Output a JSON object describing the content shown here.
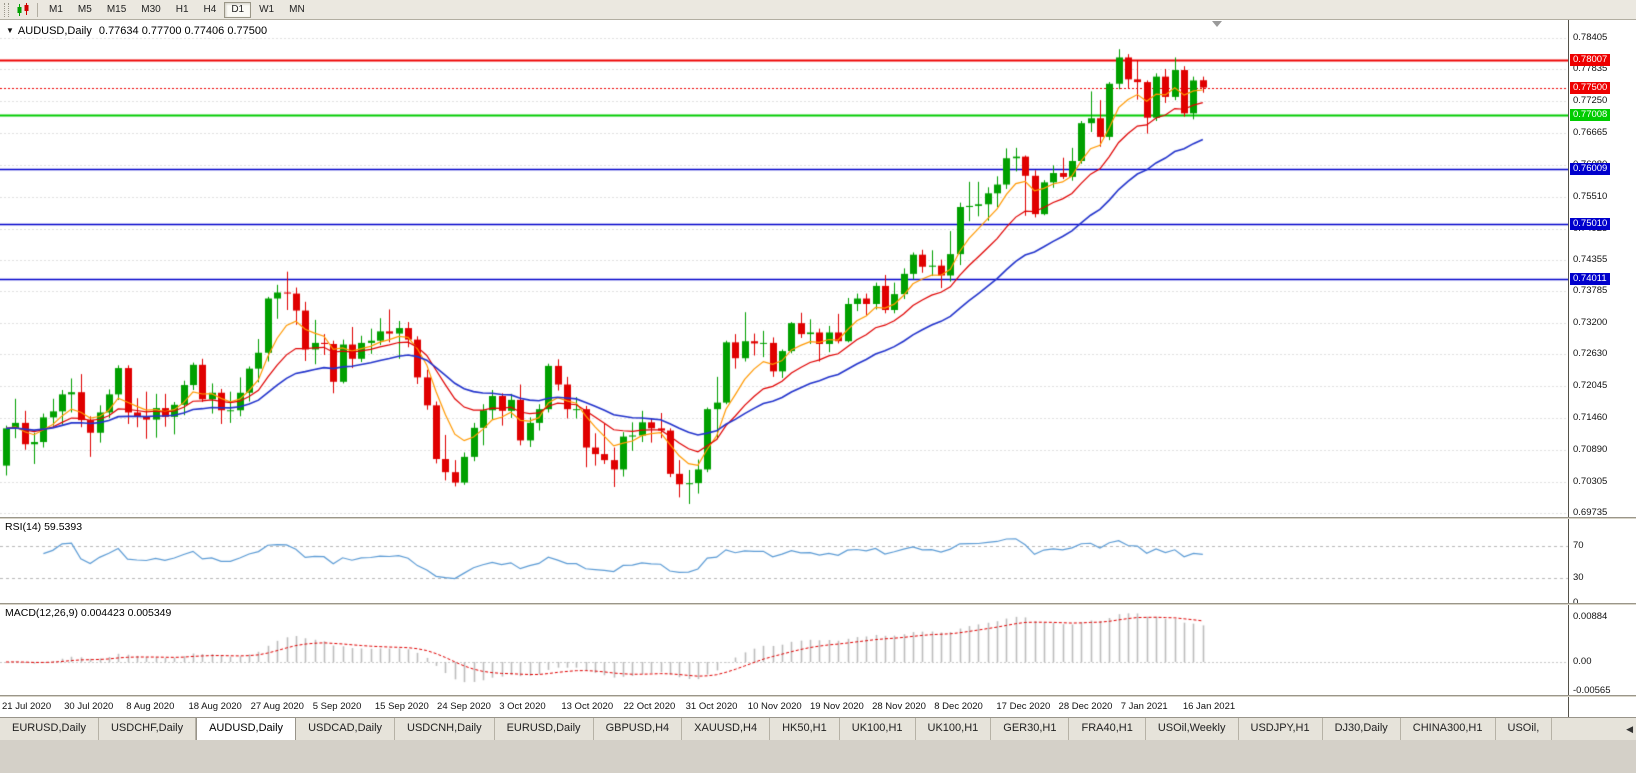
{
  "icons": {
    "title_dropdown": "▼",
    "tab_scroll_left": "◀"
  },
  "toolbar": {
    "timeframes": [
      "M1",
      "M5",
      "M15",
      "M30",
      "H1",
      "H4",
      "D1",
      "W1",
      "MN"
    ],
    "active_timeframe": "D1"
  },
  "chart": {
    "symbol_period": "AUDUSD,Daily",
    "ohlc": "0.77634 0.77700 0.77406 0.77500"
  },
  "chart_data": {
    "type": "candlestick",
    "symbol": "AUDUSD",
    "timeframe": "Daily",
    "title": "AUDUSD,Daily",
    "last_ohlc": {
      "open": 0.77634,
      "high": 0.777,
      "low": 0.77406,
      "close": 0.775
    },
    "y_axis": {
      "min": 0.69735,
      "max": 0.78405,
      "ticks": [
        "0.78405",
        "0.77835",
        "0.77250",
        "0.76665",
        "0.76080",
        "0.75510",
        "0.74925",
        "0.74355",
        "0.73785",
        "0.73200",
        "0.72630",
        "0.72045",
        "0.71460",
        "0.70890",
        "0.70305",
        "0.69735"
      ]
    },
    "x_labels": [
      "21 Jul 2020",
      "30 Jul 2020",
      "8 Aug 2020",
      "18 Aug 2020",
      "27 Aug 2020",
      "5 Sep 2020",
      "15 Sep 2020",
      "24 Sep 2020",
      "3 Oct 2020",
      "13 Oct 2020",
      "22 Oct 2020",
      "31 Oct 2020",
      "10 Nov 2020",
      "19 Nov 2020",
      "28 Nov 2020",
      "8 Dec 2020",
      "17 Dec 2020",
      "28 Dec 2020",
      "7 Jan 2021",
      "16 Jan 2021"
    ],
    "horizontal_lines": [
      {
        "id": "resistance-line",
        "price": 0.78007,
        "label": "0.78007",
        "color": "#ee0000",
        "width": 2,
        "style": "solid"
      },
      {
        "id": "bid-price-line",
        "price": 0.775,
        "label": "0.77500",
        "color": "#ee0000",
        "width": 1,
        "style": "dotted"
      },
      {
        "id": "support-line",
        "price": 0.77008,
        "label": "0.77008",
        "color": "#00cc00",
        "width": 2,
        "style": "solid"
      },
      {
        "id": "blue-level-1",
        "price": 0.76009,
        "label": "0.76009",
        "color": "#0000cc",
        "width": 1.4,
        "style": "solid"
      },
      {
        "id": "blue-level-2",
        "price": 0.7501,
        "label": "0.75010",
        "color": "#0000cc",
        "width": 1.4,
        "style": "solid"
      },
      {
        "id": "blue-level-3",
        "price": 0.74011,
        "label": "0.74011",
        "color": "#0000cc",
        "width": 1.4,
        "style": "solid"
      }
    ],
    "moving_averages": [
      {
        "period": 6,
        "type": "ema",
        "color": "#ff9900"
      },
      {
        "period": 13,
        "type": "ema",
        "color": "#e00000"
      },
      {
        "period": 26,
        "type": "ema",
        "color": "#2233cc"
      }
    ],
    "colors": {
      "bull": "#00a000",
      "bear": "#e00000",
      "grid": "#e0e0e0",
      "background": "#ffffff"
    },
    "candles": [
      [
        0.706,
        0.7133,
        0.7042,
        0.7128
      ],
      [
        0.7128,
        0.7182,
        0.711,
        0.7138
      ],
      [
        0.7138,
        0.716,
        0.7089,
        0.7099
      ],
      [
        0.7099,
        0.712,
        0.7063,
        0.7103
      ],
      [
        0.7103,
        0.7155,
        0.7093,
        0.7148
      ],
      [
        0.7148,
        0.7182,
        0.7133,
        0.7159
      ],
      [
        0.7159,
        0.7198,
        0.7135,
        0.719
      ],
      [
        0.719,
        0.7219,
        0.7157,
        0.7194
      ],
      [
        0.7194,
        0.7227,
        0.713,
        0.7143
      ],
      [
        0.7143,
        0.715,
        0.7076,
        0.712
      ],
      [
        0.712,
        0.717,
        0.7102,
        0.7157
      ],
      [
        0.7157,
        0.7199,
        0.7147,
        0.719
      ],
      [
        0.719,
        0.7243,
        0.718,
        0.7238
      ],
      [
        0.7238,
        0.7243,
        0.7136,
        0.7157
      ],
      [
        0.7157,
        0.7183,
        0.713,
        0.7149
      ],
      [
        0.7149,
        0.7195,
        0.7109,
        0.7144
      ],
      [
        0.7144,
        0.7191,
        0.7111,
        0.7165
      ],
      [
        0.7165,
        0.7191,
        0.7131,
        0.7149
      ],
      [
        0.7149,
        0.7176,
        0.7117,
        0.7171
      ],
      [
        0.7171,
        0.7215,
        0.7152,
        0.7207
      ],
      [
        0.7207,
        0.7248,
        0.7198,
        0.7244
      ],
      [
        0.7244,
        0.7255,
        0.7176,
        0.7181
      ],
      [
        0.7181,
        0.721,
        0.7155,
        0.7193
      ],
      [
        0.7193,
        0.72,
        0.7136,
        0.7161
      ],
      [
        0.7161,
        0.7195,
        0.7138,
        0.7161
      ],
      [
        0.7161,
        0.7221,
        0.715,
        0.7193
      ],
      [
        0.7193,
        0.7241,
        0.7177,
        0.7237
      ],
      [
        0.7237,
        0.7291,
        0.7212,
        0.7266
      ],
      [
        0.7266,
        0.7368,
        0.725,
        0.7365
      ],
      [
        0.7365,
        0.739,
        0.7328,
        0.7376
      ],
      [
        0.7376,
        0.7414,
        0.7344,
        0.7374
      ],
      [
        0.7374,
        0.7385,
        0.7317,
        0.7343
      ],
      [
        0.7343,
        0.7359,
        0.7251,
        0.7272
      ],
      [
        0.7272,
        0.7326,
        0.7245,
        0.7284
      ],
      [
        0.7284,
        0.73,
        0.7262,
        0.7282
      ],
      [
        0.7282,
        0.7288,
        0.7192,
        0.7213
      ],
      [
        0.7213,
        0.729,
        0.721,
        0.7281
      ],
      [
        0.7281,
        0.7313,
        0.7238,
        0.7255
      ],
      [
        0.7255,
        0.7297,
        0.7249,
        0.7284
      ],
      [
        0.7284,
        0.731,
        0.7264,
        0.7288
      ],
      [
        0.7288,
        0.7329,
        0.728,
        0.7305
      ],
      [
        0.7305,
        0.7345,
        0.7285,
        0.7301
      ],
      [
        0.7301,
        0.7324,
        0.7255,
        0.7311
      ],
      [
        0.7311,
        0.7322,
        0.7276,
        0.729
      ],
      [
        0.729,
        0.7296,
        0.7209,
        0.7221
      ],
      [
        0.7221,
        0.7235,
        0.7162,
        0.717
      ],
      [
        0.717,
        0.7177,
        0.7064,
        0.7072
      ],
      [
        0.7072,
        0.7116,
        0.7033,
        0.7048
      ],
      [
        0.7048,
        0.707,
        0.7022,
        0.7029
      ],
      [
        0.7029,
        0.7084,
        0.7025,
        0.7076
      ],
      [
        0.7076,
        0.7138,
        0.7068,
        0.7129
      ],
      [
        0.7129,
        0.7172,
        0.7097,
        0.7161
      ],
      [
        0.7161,
        0.7198,
        0.7144,
        0.7187
      ],
      [
        0.7187,
        0.7192,
        0.7133,
        0.716
      ],
      [
        0.716,
        0.7191,
        0.7147,
        0.718
      ],
      [
        0.718,
        0.7208,
        0.7097,
        0.7106
      ],
      [
        0.7106,
        0.7148,
        0.7094,
        0.7138
      ],
      [
        0.7138,
        0.7172,
        0.7124,
        0.7163
      ],
      [
        0.7163,
        0.7246,
        0.7157,
        0.7242
      ],
      [
        0.7242,
        0.7254,
        0.7197,
        0.7208
      ],
      [
        0.7208,
        0.7222,
        0.7146,
        0.7163
      ],
      [
        0.7163,
        0.7185,
        0.7146,
        0.7163
      ],
      [
        0.7163,
        0.7169,
        0.7057,
        0.7093
      ],
      [
        0.7093,
        0.7119,
        0.706,
        0.7081
      ],
      [
        0.7081,
        0.7136,
        0.7063,
        0.707
      ],
      [
        0.707,
        0.7093,
        0.7021,
        0.7053
      ],
      [
        0.7053,
        0.7121,
        0.704,
        0.7113
      ],
      [
        0.7113,
        0.7139,
        0.7087,
        0.7115
      ],
      [
        0.7115,
        0.716,
        0.7103,
        0.7139
      ],
      [
        0.7139,
        0.7146,
        0.7102,
        0.7128
      ],
      [
        0.7128,
        0.7156,
        0.711,
        0.7124
      ],
      [
        0.7124,
        0.7128,
        0.7039,
        0.7045
      ],
      [
        0.7045,
        0.707,
        0.7002,
        0.7026
      ],
      [
        0.7026,
        0.7052,
        0.699,
        0.7028
      ],
      [
        0.7028,
        0.7071,
        0.7009,
        0.7053
      ],
      [
        0.7053,
        0.7166,
        0.7048,
        0.7163
      ],
      [
        0.7163,
        0.7222,
        0.7108,
        0.7175
      ],
      [
        0.7175,
        0.7288,
        0.7172,
        0.7285
      ],
      [
        0.7285,
        0.73,
        0.7237,
        0.7256
      ],
      [
        0.7256,
        0.734,
        0.725,
        0.7287
      ],
      [
        0.7287,
        0.7301,
        0.7261,
        0.7283
      ],
      [
        0.7283,
        0.7306,
        0.7258,
        0.7284
      ],
      [
        0.7284,
        0.7294,
        0.7222,
        0.7232
      ],
      [
        0.7232,
        0.7272,
        0.722,
        0.7269
      ],
      [
        0.7269,
        0.7322,
        0.7265,
        0.732
      ],
      [
        0.732,
        0.7339,
        0.7293,
        0.73
      ],
      [
        0.73,
        0.7327,
        0.7282,
        0.7303
      ],
      [
        0.7303,
        0.731,
        0.725,
        0.7282
      ],
      [
        0.7282,
        0.7315,
        0.7267,
        0.7303
      ],
      [
        0.7303,
        0.7337,
        0.7283,
        0.7287
      ],
      [
        0.7287,
        0.7366,
        0.7285,
        0.7355
      ],
      [
        0.7355,
        0.7374,
        0.7342,
        0.7365
      ],
      [
        0.7365,
        0.7374,
        0.7335,
        0.7355
      ],
      [
        0.7355,
        0.7394,
        0.7345,
        0.7388
      ],
      [
        0.7388,
        0.7408,
        0.7338,
        0.7344
      ],
      [
        0.7344,
        0.7394,
        0.7338,
        0.7373
      ],
      [
        0.7373,
        0.742,
        0.7364,
        0.741
      ],
      [
        0.741,
        0.7449,
        0.74,
        0.7445
      ],
      [
        0.7445,
        0.7454,
        0.7412,
        0.7423
      ],
      [
        0.7423,
        0.7453,
        0.7406,
        0.7425
      ],
      [
        0.7425,
        0.7436,
        0.7384,
        0.7407
      ],
      [
        0.7407,
        0.7488,
        0.7396,
        0.7446
      ],
      [
        0.7446,
        0.754,
        0.7426,
        0.7532
      ],
      [
        0.7532,
        0.7578,
        0.7506,
        0.7534
      ],
      [
        0.7534,
        0.7578,
        0.7515,
        0.7537
      ],
      [
        0.7537,
        0.7568,
        0.7507,
        0.7557
      ],
      [
        0.7557,
        0.7588,
        0.7532,
        0.7573
      ],
      [
        0.7573,
        0.7639,
        0.7565,
        0.7621
      ],
      [
        0.7621,
        0.764,
        0.7597,
        0.7624
      ],
      [
        0.7624,
        0.7626,
        0.7516,
        0.7589
      ],
      [
        0.7589,
        0.7599,
        0.7513,
        0.7519
      ],
      [
        0.7519,
        0.7581,
        0.7517,
        0.7577
      ],
      [
        0.7577,
        0.7608,
        0.7567,
        0.7594
      ],
      [
        0.7594,
        0.7622,
        0.7583,
        0.7587
      ],
      [
        0.7587,
        0.764,
        0.758,
        0.7616
      ],
      [
        0.7616,
        0.7689,
        0.7611,
        0.7685
      ],
      [
        0.7685,
        0.7743,
        0.7669,
        0.7694
      ],
      [
        0.7694,
        0.7727,
        0.7642,
        0.766
      ],
      [
        0.766,
        0.776,
        0.7654,
        0.7757
      ],
      [
        0.7757,
        0.782,
        0.7747,
        0.7805
      ],
      [
        0.7805,
        0.7811,
        0.7749,
        0.7765
      ],
      [
        0.7765,
        0.78,
        0.7728,
        0.776
      ],
      [
        0.776,
        0.7763,
        0.7666,
        0.7695
      ],
      [
        0.7695,
        0.7776,
        0.7689,
        0.777
      ],
      [
        0.777,
        0.7784,
        0.7722,
        0.7733
      ],
      [
        0.7733,
        0.7805,
        0.7727,
        0.7782
      ],
      [
        0.7782,
        0.7789,
        0.7697,
        0.7703
      ],
      [
        0.7703,
        0.777,
        0.7692,
        0.7763
      ],
      [
        0.77634,
        0.777,
        0.77406,
        0.775
      ]
    ],
    "indicators": [
      {
        "name": "RSI",
        "params": [
          14
        ],
        "value": 59.5393,
        "levels": [
          70,
          30
        ]
      },
      {
        "name": "MACD",
        "params": [
          12,
          26,
          9
        ],
        "values": [
          0.004423,
          0.005349
        ],
        "axis_range": [
          0.00884,
          -0.00565
        ]
      }
    ]
  },
  "rsi_panel": {
    "label": "RSI(14) 59.5393",
    "value": "59.5393",
    "line_color": "#5b9bd5",
    "axis_labels": [
      {
        "text": "70",
        "value": 70
      },
      {
        "text": "30",
        "value": 30
      },
      {
        "text": "0",
        "value": 0
      }
    ]
  },
  "macd_panel": {
    "label": "MACD(12,26,9) 0.004423 0.005349",
    "histogram_color": "#bdbdbd",
    "signal_color": "#e00000",
    "axis_labels": [
      {
        "text": "0.00884",
        "value": 0.00884
      },
      {
        "text": "0.00",
        "value": 0
      },
      {
        "text": "-0.00565",
        "value": -0.00565
      }
    ]
  },
  "tabs": {
    "items": [
      "EURUSD,Daily",
      "USDCHF,Daily",
      "AUDUSD,Daily",
      "USDCAD,Daily",
      "USDCNH,Daily",
      "EURUSD,Daily",
      "GBPUSD,H4",
      "XAUUSD,H4",
      "HK50,H1",
      "UK100,H1",
      "UK100,H1",
      "GER30,H1",
      "FRA40,H1",
      "USOil,Weekly",
      "USDJPY,H1",
      "DJ30,Daily",
      "CHINA300,H1",
      "USOil,"
    ],
    "active_index": 2
  }
}
